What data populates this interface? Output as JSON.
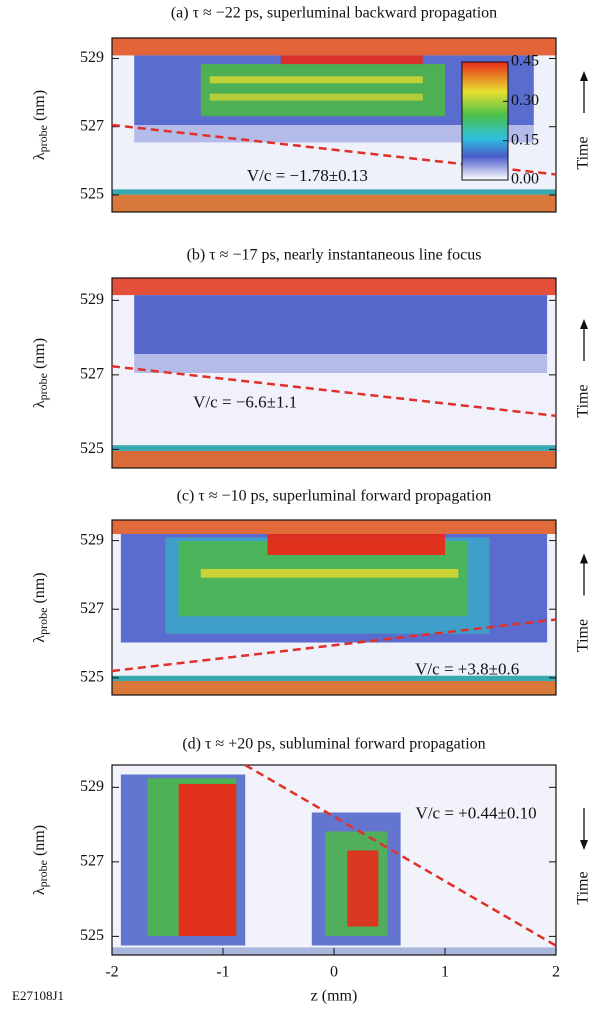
{
  "chart_data": [
    {
      "type": "heatmap",
      "title": "(a) τ ≈ −22 ps, superluminal backward propagation",
      "ylabel": "λ",
      "ylabel_sub": "probe",
      "ylabel_unit": "(nm)",
      "ylim": [
        524.5,
        529.6
      ],
      "yticks": [
        525,
        527,
        529
      ],
      "xlim": [
        -2,
        2
      ],
      "fit_line": {
        "x": [
          -2,
          2
        ],
        "y": [
          527.05,
          525.6
        ],
        "color": "#e0302a"
      },
      "annotation": "V/c = −1.78±0.13",
      "side_label": "Time",
      "time_arrow": "up",
      "colorbar": {
        "clim": [
          0,
          0.45
        ],
        "ticks": [
          {
            "value": 0,
            "label": "0.00"
          },
          {
            "value": 0.15,
            "label": "0.15"
          },
          {
            "value": 0.3,
            "label": "0.30"
          },
          {
            "value": 0.45,
            "label": "0.45"
          }
        ]
      }
    },
    {
      "type": "heatmap",
      "title": "(b) τ ≈ −17 ps, nearly instantaneous line focus",
      "ylabel": "λ",
      "ylabel_sub": "probe",
      "ylabel_unit": "(nm)",
      "ylim": [
        524.5,
        529.6
      ],
      "yticks": [
        525,
        527,
        529
      ],
      "xlim": [
        -2,
        2
      ],
      "fit_line": {
        "x": [
          -2,
          2
        ],
        "y": [
          527.23,
          525.9
        ],
        "color": "#e0302a"
      },
      "annotation": "V/c = −6.6±1.1",
      "side_label": "Time",
      "time_arrow": "up"
    },
    {
      "type": "heatmap",
      "title": "(c) τ ≈ −10 ps, superluminal forward propagation",
      "ylabel": "λ",
      "ylabel_sub": "probe",
      "ylabel_unit": "(nm)",
      "ylim": [
        524.5,
        529.6
      ],
      "yticks": [
        525,
        527,
        529
      ],
      "xlim": [
        -2,
        2
      ],
      "fit_line": {
        "x": [
          -2,
          2
        ],
        "y": [
          525.2,
          526.7
        ],
        "color": "#e0302a"
      },
      "annotation": "V/c = +3.8±0.6",
      "side_label": "Time",
      "time_arrow": "up"
    },
    {
      "type": "heatmap",
      "title": "(d) τ ≈ +20 ps, subluminal forward propagation",
      "ylabel": "λ",
      "ylabel_sub": "probe",
      "ylabel_unit": "(nm)",
      "ylim": [
        524.5,
        529.6
      ],
      "yticks": [
        525,
        527,
        529
      ],
      "xlim": [
        -2,
        2
      ],
      "xticks": [
        -2,
        -1,
        0,
        1,
        2
      ],
      "xlabel": "z (mm)",
      "fit_line": {
        "x": [
          -0.8,
          2
        ],
        "y": [
          529.6,
          524.75
        ],
        "color": "#e0302a"
      },
      "annotation": "V/c = +0.44±0.10",
      "side_label": "Time",
      "time_arrow": "down"
    }
  ],
  "footer": "E27108J1"
}
